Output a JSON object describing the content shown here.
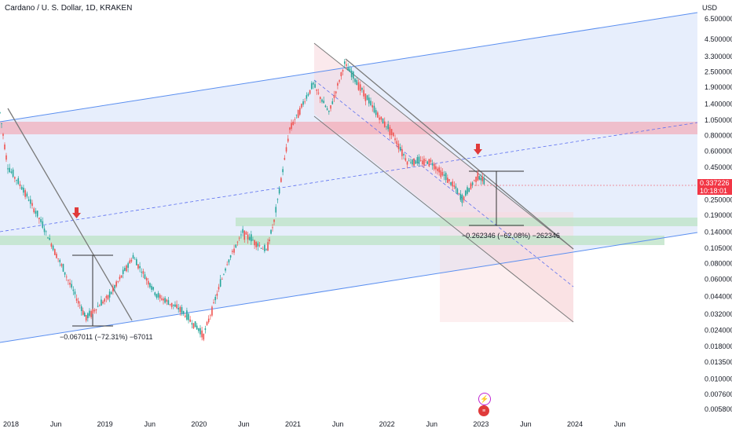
{
  "header": {
    "title": "Cardano / U. S. Dollar, 1D, KRAKEN"
  },
  "price_axis": {
    "currency": "USD",
    "labels": [
      "6.500000",
      "4.500000",
      "3.300000",
      "2.500000",
      "1.900000",
      "1.400000",
      "1.050000",
      "0.800000",
      "0.600000",
      "0.450000",
      "0.250000",
      "0.190000",
      "0.140000",
      "0.105000",
      "0.080000",
      "0.060000",
      "0.044000",
      "0.032000",
      "0.024000",
      "0.018000",
      "0.013500",
      "0.010000",
      "0.007600",
      "0.005800"
    ]
  },
  "price_tag": {
    "price": "0.337226",
    "countdown": "10:18:01"
  },
  "time_axis": {
    "labels": [
      "2018",
      "Jun",
      "2019",
      "Jun",
      "2020",
      "Jun",
      "2021",
      "Jun",
      "2022",
      "Jun",
      "2023",
      "Jun",
      "2024",
      "Jun"
    ]
  },
  "measurements": [
    {
      "text": "−0.067011 (−72.31%) −67011"
    },
    {
      "text": "−0.262346 (−62.08%) −262346"
    }
  ],
  "chart_data": {
    "type": "line",
    "symbol": "ADA/USD",
    "y_scale": "log",
    "ylim": [
      0.0058,
      6.5
    ],
    "x_range": [
      "2018-01",
      "2024-09"
    ],
    "approx_price_path": [
      {
        "x": "2018-01",
        "y": 1.2
      },
      {
        "x": "2018-02",
        "y": 0.45
      },
      {
        "x": "2018-04",
        "y": 0.3
      },
      {
        "x": "2018-06",
        "y": 0.18
      },
      {
        "x": "2018-08",
        "y": 0.1
      },
      {
        "x": "2018-11",
        "y": 0.04
      },
      {
        "x": "2018-12",
        "y": 0.03
      },
      {
        "x": "2019-03",
        "y": 0.045
      },
      {
        "x": "2019-06",
        "y": 0.09
      },
      {
        "x": "2019-09",
        "y": 0.045
      },
      {
        "x": "2019-12",
        "y": 0.035
      },
      {
        "x": "2020-03",
        "y": 0.022
      },
      {
        "x": "2020-06",
        "y": 0.08
      },
      {
        "x": "2020-08",
        "y": 0.14
      },
      {
        "x": "2020-11",
        "y": 0.1
      },
      {
        "x": "2020-12",
        "y": 0.17
      },
      {
        "x": "2021-02",
        "y": 0.9
      },
      {
        "x": "2021-05",
        "y": 2.0
      },
      {
        "x": "2021-07",
        "y": 1.2
      },
      {
        "x": "2021-09",
        "y": 2.9
      },
      {
        "x": "2021-11",
        "y": 1.9
      },
      {
        "x": "2022-01",
        "y": 1.2
      },
      {
        "x": "2022-03",
        "y": 0.85
      },
      {
        "x": "2022-05",
        "y": 0.5
      },
      {
        "x": "2022-08",
        "y": 0.5
      },
      {
        "x": "2022-11",
        "y": 0.32
      },
      {
        "x": "2022-12",
        "y": 0.25
      },
      {
        "x": "2023-02",
        "y": 0.39
      },
      {
        "x": "2023-03",
        "y": 0.34
      }
    ]
  },
  "colors": {
    "up": "#26a69a",
    "down": "#ef5350",
    "channel": "#5b8ff0",
    "price_tag": "#f23645"
  }
}
